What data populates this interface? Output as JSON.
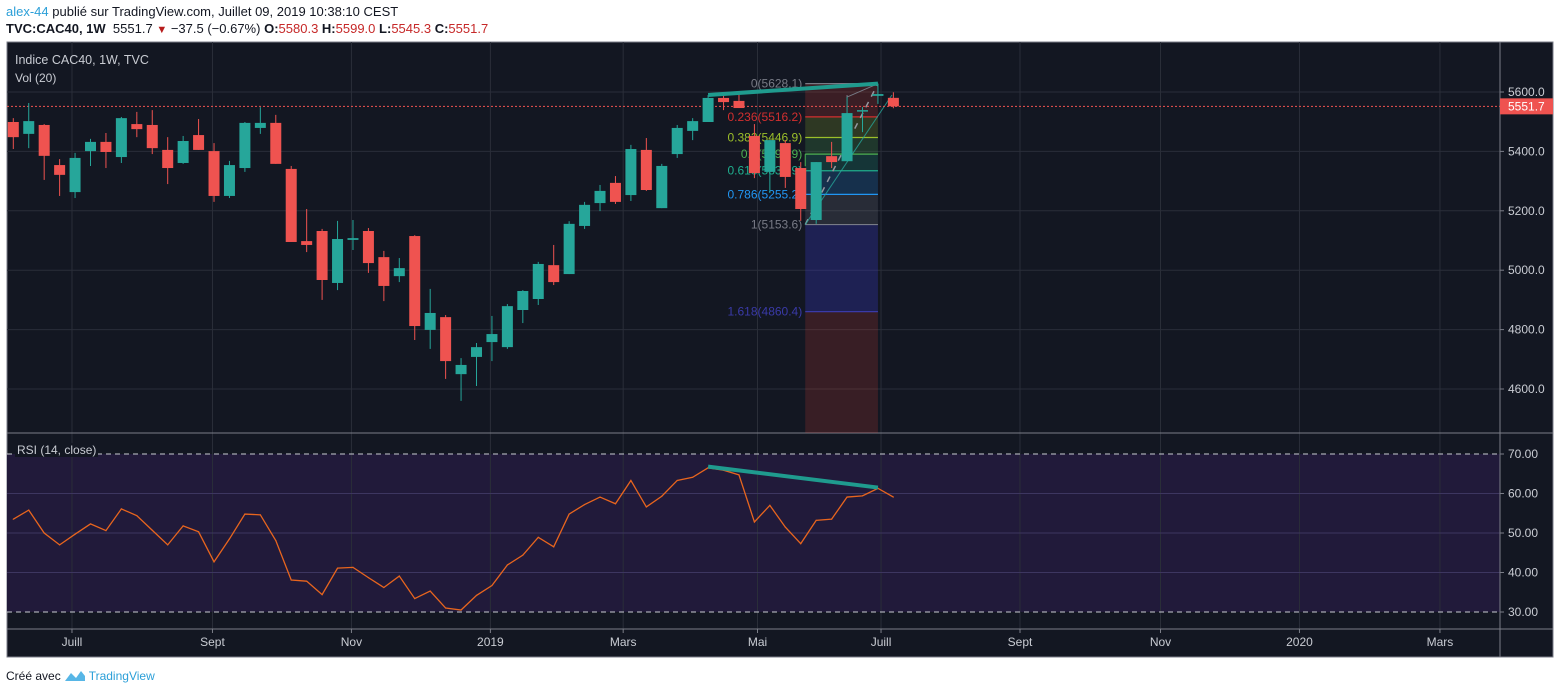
{
  "header": {
    "user": "alex-44",
    "published": "publié sur TradingView.com, Juillet 09, 2019 10:38:10 CEST",
    "symbol": "TVC:CAC40, 1W",
    "last": "5551.7",
    "change": "−37.5 (−0.67%)",
    "o_label": "O:",
    "o": "5580.3",
    "h_label": "H:",
    "h": "5599.0",
    "l_label": "L:",
    "l": "5545.3",
    "c_label": "C:",
    "c": "5551.7"
  },
  "pane": {
    "title": "Indice CAC40, 1W, TVC",
    "vol_label": "Vol (20)",
    "rsi_label": "RSI (14, close)",
    "last_price_tag": "5551.7"
  },
  "footer": {
    "created_with": "Créé avec",
    "brand": "TradingView"
  },
  "colors": {
    "up": "#26a69a",
    "down": "#ef5350",
    "rsi": "#e8651e",
    "trend": "#1f9b8e",
    "bg": "#131722",
    "rsi_band": "#211a3a"
  },
  "chart_data": [
    {
      "type": "candlestick",
      "title": "Indice CAC40, 1W, TVC",
      "ylim": [
        4470,
        5700
      ],
      "yticks": [
        5600,
        5400,
        5200,
        5000,
        4800,
        4600
      ],
      "ytick_labels": [
        "5600.0",
        "5400.0",
        "5200.0",
        "5000.0",
        "4800.0",
        "4600.0"
      ],
      "xticks": [
        {
          "label": "Juill",
          "week": 3.8
        },
        {
          "label": "Sept",
          "week": 12.9
        },
        {
          "label": "Nov",
          "week": 21.9
        },
        {
          "label": "2019",
          "week": 30.9
        },
        {
          "label": "Mars",
          "week": 39.5
        },
        {
          "label": "Mai",
          "week": 48.2
        },
        {
          "label": "Juill",
          "week": 56.2
        },
        {
          "label": "Sept",
          "week": 65.2
        },
        {
          "label": "Nov",
          "week": 74.3
        },
        {
          "label": "2020",
          "week": 83.3
        },
        {
          "label": "Mars",
          "week": 92.4
        }
      ],
      "ohlc": [
        [
          5499,
          5512,
          5408,
          5448
        ],
        [
          5459,
          5563,
          5411,
          5502
        ],
        [
          5489,
          5492,
          5304,
          5385
        ],
        [
          5354,
          5374,
          5250,
          5321
        ],
        [
          5263,
          5395,
          5243,
          5378
        ],
        [
          5401,
          5442,
          5351,
          5432
        ],
        [
          5432,
          5462,
          5344,
          5398
        ],
        [
          5381,
          5516,
          5361,
          5512
        ],
        [
          5492,
          5533,
          5448,
          5475
        ],
        [
          5489,
          5539,
          5391,
          5411
        ],
        [
          5405,
          5448,
          5290,
          5344
        ],
        [
          5361,
          5452,
          5358,
          5435
        ],
        [
          5455,
          5509,
          5405,
          5405
        ],
        [
          5401,
          5428,
          5230,
          5250
        ],
        [
          5250,
          5368,
          5243,
          5354
        ],
        [
          5344,
          5499,
          5331,
          5496
        ],
        [
          5479,
          5549,
          5459,
          5496
        ],
        [
          5496,
          5523,
          5358,
          5358
        ],
        [
          5341,
          5351,
          5095,
          5095
        ],
        [
          5098,
          5206,
          5061,
          5085
        ],
        [
          5132,
          5139,
          4900,
          4967
        ],
        [
          4957,
          5166,
          4933,
          5105
        ],
        [
          5102,
          5169,
          5068,
          5108
        ],
        [
          5132,
          5142,
          4991,
          5024
        ],
        [
          5044,
          5065,
          4896,
          4947
        ],
        [
          4980,
          5041,
          4960,
          5007
        ],
        [
          5115,
          5118,
          4765,
          4812
        ],
        [
          4799,
          4937,
          4735,
          4856
        ],
        [
          4842,
          4849,
          4634,
          4694
        ],
        [
          4650,
          4704,
          4560,
          4681
        ],
        [
          4708,
          4755,
          4610,
          4741
        ],
        [
          4758,
          4846,
          4694,
          4785
        ],
        [
          4741,
          4886,
          4735,
          4879
        ],
        [
          4866,
          4933,
          4822,
          4930
        ],
        [
          4903,
          5028,
          4883,
          5021
        ],
        [
          5017,
          5085,
          4950,
          4960
        ],
        [
          4987,
          5165,
          4987,
          5156
        ],
        [
          5149,
          5230,
          5139,
          5220
        ],
        [
          5226,
          5287,
          5199,
          5267
        ],
        [
          5294,
          5317,
          5223,
          5230
        ],
        [
          5253,
          5422,
          5233,
          5408
        ],
        [
          5405,
          5445,
          5267,
          5270
        ],
        [
          5209,
          5358,
          5209,
          5351
        ],
        [
          5391,
          5489,
          5378,
          5479
        ],
        [
          5469,
          5512,
          5438,
          5502
        ],
        [
          5499,
          5590,
          5499,
          5580
        ],
        [
          5580,
          5600,
          5539,
          5566
        ],
        [
          5570,
          5593,
          5546,
          5546
        ],
        [
          5452,
          5492,
          5310,
          5327
        ],
        [
          5331,
          5438,
          5260,
          5438
        ],
        [
          5428,
          5438,
          5277,
          5314
        ],
        [
          5344,
          5364,
          5166,
          5206
        ],
        [
          5169,
          5364,
          5156,
          5364
        ],
        [
          5384,
          5432,
          5344,
          5364
        ],
        [
          5367,
          5583,
          5367,
          5529
        ],
        [
          5536,
          5549,
          5465,
          5539
        ],
        [
          5587,
          5628.1,
          5560,
          5593
        ],
        [
          5580.3,
          5599.0,
          5545.3,
          5551.7
        ]
      ],
      "last_price": 5551.7,
      "fib": {
        "start_week": 51,
        "end_week": 56,
        "levels": [
          {
            "ratio": 0,
            "price": 5628.1,
            "label": "0(5628.1)",
            "color": "#787b86"
          },
          {
            "ratio": 0.236,
            "price": 5516.2,
            "label": "0.236(5516.2)",
            "color": "#d32f2f"
          },
          {
            "ratio": 0.382,
            "price": 5446.9,
            "label": "0.382(5446.9)",
            "color": "#9bbf2a"
          },
          {
            "ratio": 0.5,
            "price": 5390.9,
            "label": "0.5(5390.9)",
            "color": "#4caf50"
          },
          {
            "ratio": 0.618,
            "price": 5334.9,
            "label": "0.618(5334.9)",
            "color": "#1fae8e"
          },
          {
            "ratio": 0.786,
            "price": 5255.2,
            "label": "0.786(5255.2)",
            "color": "#2196f3"
          },
          {
            "ratio": 1,
            "price": 5153.6,
            "label": "1(5153.6)",
            "color": "#787b86"
          },
          {
            "ratio": 1.618,
            "price": 4860.4,
            "label": "1.618(4860.4)",
            "color": "#3a3aa8"
          }
        ]
      },
      "trendline": {
        "from": [
          45,
          5590
        ],
        "to": [
          56,
          5628.1
        ]
      }
    },
    {
      "type": "line",
      "title": "RSI (14, close)",
      "ylim": [
        25,
        74
      ],
      "yticks": [
        70,
        60,
        50,
        40,
        30
      ],
      "ytick_labels": [
        "70.00",
        "60.00",
        "50.00",
        "40.00",
        "30.00"
      ],
      "bands": [
        30,
        70
      ],
      "values": [
        53.5,
        55.8,
        50.0,
        47.0,
        49.7,
        52.3,
        50.6,
        56.1,
        54.4,
        50.7,
        47.0,
        51.8,
        50.3,
        42.7,
        48.5,
        54.8,
        54.6,
        48.1,
        38.1,
        37.8,
        34.4,
        41.1,
        41.3,
        38.7,
        36.2,
        39.1,
        33.4,
        35.3,
        31.0,
        30.5,
        34.2,
        36.7,
        41.9,
        44.4,
        48.9,
        46.5,
        54.8,
        57.2,
        59.1,
        57.4,
        63.3,
        56.6,
        59.3,
        63.3,
        64.1,
        66.5,
        65.9,
        64.7,
        52.8,
        57.0,
        51.5,
        47.3,
        53.2,
        53.5,
        59.1,
        59.4,
        61.3,
        59.1
      ],
      "trendline": {
        "from": [
          45,
          66.8
        ],
        "to": [
          56,
          61.5
        ]
      }
    }
  ]
}
